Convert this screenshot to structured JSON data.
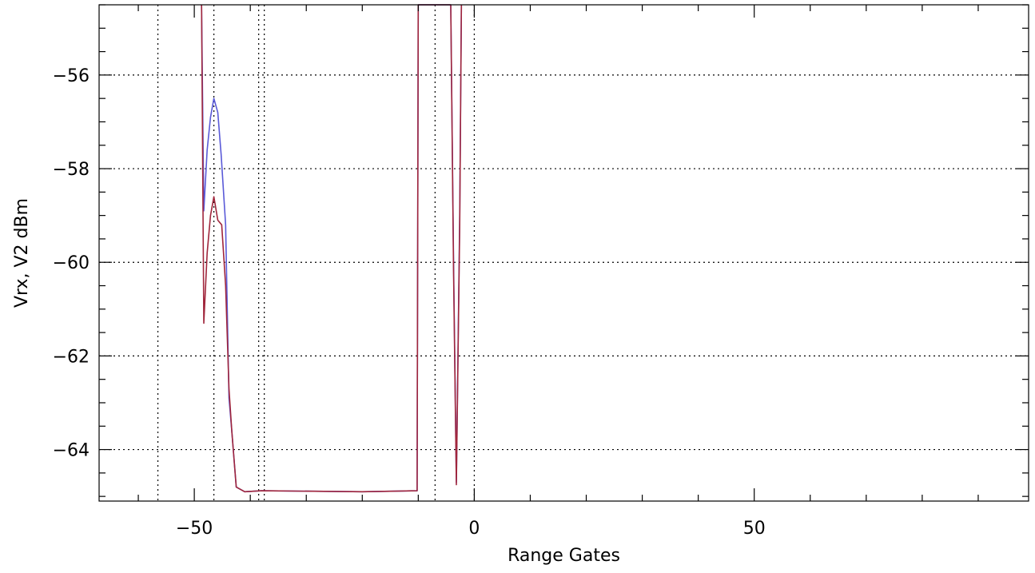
{
  "chart_data": {
    "type": "line",
    "xlabel": "Range Gates",
    "ylabel": "Vrx, V2 dBm",
    "xlim": [
      -67,
      99
    ],
    "ylim": [
      -65.1,
      -54.5
    ],
    "xticks": [
      -50,
      0,
      50
    ],
    "yticks": [
      -56,
      -58,
      -60,
      -62,
      -64
    ],
    "xtick_labels": [
      "−50",
      "0",
      "50"
    ],
    "ytick_labels": [
      "−56",
      "−58",
      "−60",
      "−62",
      "−64"
    ],
    "grid": "dotted",
    "vlines": [
      -56.5,
      -46.5,
      -38.5,
      -37.5,
      -7,
      0
    ],
    "series": [
      {
        "color": "#5a5ad8",
        "points": [
          [
            -48.7,
            -54.5
          ],
          [
            -48.3,
            -58.9
          ],
          [
            -47.7,
            -57.6
          ],
          [
            -47.1,
            -56.9
          ],
          [
            -46.5,
            -56.5
          ],
          [
            -45.8,
            -56.8
          ],
          [
            -45.2,
            -57.7
          ],
          [
            -44.4,
            -59.2
          ],
          [
            -43.8,
            -62.9
          ],
          [
            -43.3,
            -63.6
          ],
          [
            -42.5,
            -64.8
          ],
          [
            -41.0,
            -64.9
          ],
          [
            -38.0,
            -64.88
          ],
          [
            -20.0,
            -64.9
          ],
          [
            -10.2,
            -64.88
          ],
          [
            -10.0,
            -54.5
          ],
          [
            -4.2,
            -54.5
          ],
          [
            -3.7,
            -60.0
          ],
          [
            -3.2,
            -64.7
          ],
          [
            -2.6,
            -59.0
          ],
          [
            -2.3,
            -54.5
          ]
        ]
      },
      {
        "color": "#a0263c",
        "points": [
          [
            -48.7,
            -54.5
          ],
          [
            -48.3,
            -61.3
          ],
          [
            -47.7,
            -59.8
          ],
          [
            -47.1,
            -59.0
          ],
          [
            -46.5,
            -58.6
          ],
          [
            -45.8,
            -59.1
          ],
          [
            -45.1,
            -59.2
          ],
          [
            -44.4,
            -60.5
          ],
          [
            -43.8,
            -62.7
          ],
          [
            -43.3,
            -63.6
          ],
          [
            -42.5,
            -64.8
          ],
          [
            -41.0,
            -64.9
          ],
          [
            -38.0,
            -64.88
          ],
          [
            -20.0,
            -64.9
          ],
          [
            -10.2,
            -64.88
          ],
          [
            -10.0,
            -54.5
          ],
          [
            -4.2,
            -54.5
          ],
          [
            -3.7,
            -60.2
          ],
          [
            -3.2,
            -64.75
          ],
          [
            -2.6,
            -59.2
          ],
          [
            -2.3,
            -54.5
          ]
        ]
      }
    ]
  }
}
